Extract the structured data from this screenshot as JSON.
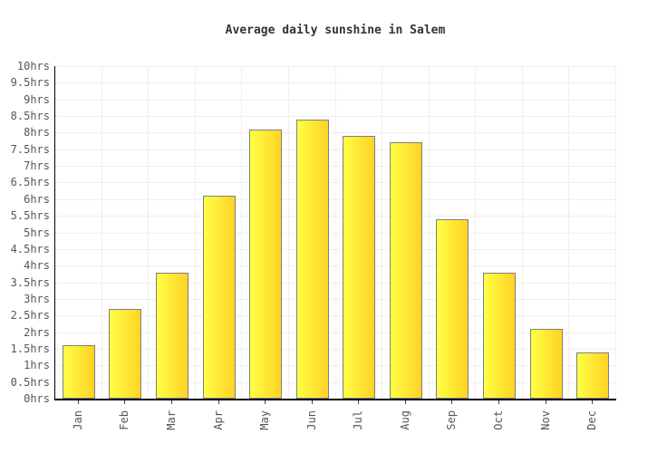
{
  "title": "Average daily sunshine in Salem",
  "chart_data": {
    "type": "bar",
    "title": "Average daily sunshine in Salem",
    "categories": [
      "Jan",
      "Feb",
      "Mar",
      "Apr",
      "May",
      "Jun",
      "Jul",
      "Aug",
      "Sep",
      "Oct",
      "Nov",
      "Dec"
    ],
    "values": [
      1.6,
      2.7,
      3.8,
      6.1,
      8.1,
      8.4,
      7.9,
      7.7,
      5.4,
      3.8,
      2.1,
      1.4
    ],
    "xlabel": "",
    "ylabel": "",
    "ylim": [
      0,
      10
    ],
    "ytick_step": 0.5,
    "ytick_suffix": "hrs",
    "grid": true,
    "legend": "none",
    "colors": {
      "bar_gradient_left": "#FFFF45",
      "bar_gradient_right": "#FFD226",
      "bar_border": "#808080",
      "gridline": "#EFEFEF",
      "axis": "#000000",
      "tick_label": "#555555",
      "title_text": "#333333",
      "background": "#FFFFFF"
    }
  }
}
